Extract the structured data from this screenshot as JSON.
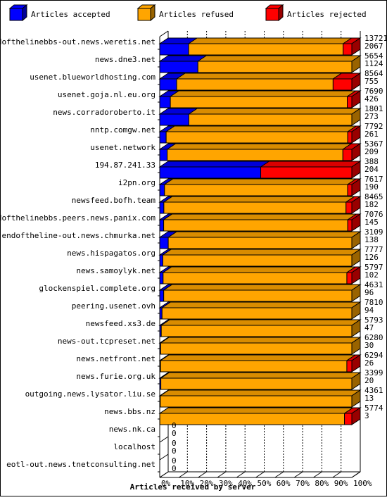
{
  "chart_data": {
    "type": "bar",
    "orientation": "horizontal",
    "stacked": "percent",
    "xlabel": "Articles received by server",
    "xlim": [
      0,
      100
    ],
    "x_ticks": [
      "0%",
      "10%",
      "20%",
      "30%",
      "40%",
      "50%",
      "60%",
      "70%",
      "80%",
      "90%",
      "100%"
    ],
    "grid": true,
    "legend_position": "top",
    "categories": [
      "endofthelinebbs-out.news.weretis.net",
      "news.dne3.net",
      "usenet.blueworldhosting.com",
      "usenet.goja.nl.eu.org",
      "news.corradoroberto.it",
      "nntp.comgw.net",
      "usenet.network",
      "194.87.241.33",
      "i2pn.org",
      "newsfeed.bofh.team",
      "endofthelinebbs.peers.news.panix.com",
      "endoftheline-out.news.chmurka.net",
      "news.hispagatos.org",
      "news.samoylyk.net",
      "glockenspiel.complete.org",
      "peering.usenet.ovh",
      "newsfeed.xs3.de",
      "news-out.tcpreset.net",
      "news.netfront.net",
      "news.furie.org.uk",
      "outgoing.news.lysator.liu.se",
      "news.bbs.nz",
      "news.nk.ca",
      "localhost",
      "eotl-out.news.tnetconsulting.net"
    ],
    "totals": [
      "13721",
      "5654",
      "8564",
      "7690",
      "1801",
      "7792",
      "5367",
      "388",
      "7617",
      "8465",
      "7076",
      "3109",
      "7777",
      "5797",
      "4631",
      "7810",
      "5793",
      "6280",
      "6294",
      "3399",
      "4361",
      "5774",
      "0",
      "0",
      "0"
    ],
    "accepted_counts": [
      "2067",
      "1124",
      "755",
      "426",
      "273",
      "261",
      "209",
      "204",
      "190",
      "182",
      "145",
      "138",
      "126",
      "102",
      "96",
      "94",
      "47",
      "30",
      "26",
      "20",
      "13",
      "3",
      "0",
      "0",
      "0"
    ],
    "series": [
      {
        "name": "Articles accepted",
        "color": "#0000ff",
        "values": [
          2067,
          1124,
          755,
          426,
          273,
          261,
          209,
          204,
          190,
          182,
          145,
          138,
          126,
          102,
          96,
          94,
          47,
          30,
          26,
          20,
          13,
          3,
          0,
          0,
          0
        ]
      },
      {
        "name": "Articles refused",
        "color": "#ffa500",
        "values": [
          11034,
          4530,
          6974,
          7081,
          1528,
          7364,
          4908,
          0,
          7259,
          8027,
          6781,
          2971,
          7651,
          5545,
          4535,
          7716,
          5746,
          6250,
          6105,
          3379,
          4348,
          5550,
          0,
          0,
          0
        ]
      },
      {
        "name": "Articles rejected",
        "color": "#ff0000",
        "values": [
          620,
          0,
          835,
          183,
          0,
          167,
          250,
          184,
          168,
          256,
          150,
          0,
          0,
          150,
          0,
          0,
          0,
          0,
          163,
          0,
          0,
          221,
          0,
          0,
          0
        ]
      }
    ]
  }
}
